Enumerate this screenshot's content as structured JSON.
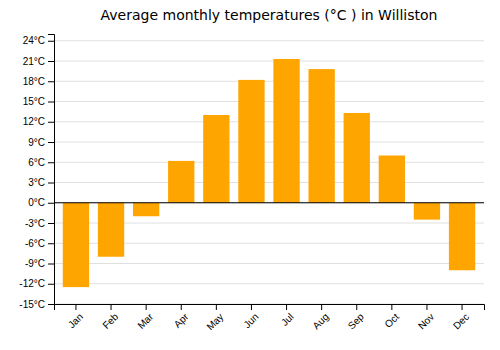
{
  "chart_data": {
    "type": "bar",
    "title": "Average monthly temperatures (°C ) in Williston",
    "categories": [
      "Jan",
      "Feb",
      "Mar",
      "Apr",
      "May",
      "Jun",
      "Jul",
      "Aug",
      "Sep",
      "Oct",
      "Nov",
      "Dec"
    ],
    "values": [
      -12.5,
      -8.0,
      -2.0,
      6.2,
      13.0,
      18.2,
      21.3,
      19.8,
      13.3,
      7.0,
      -2.5,
      -10.0
    ],
    "color": "#FFA500",
    "ylim": [
      -15,
      25
    ],
    "yticks": [
      {
        "value": -15,
        "label": "-15°C"
      },
      {
        "value": -12,
        "label": "-12°C"
      },
      {
        "value": -9,
        "label": "-9°C"
      },
      {
        "value": -6,
        "label": "-6°C"
      },
      {
        "value": -3,
        "label": "-3°C"
      },
      {
        "value": 0,
        "label": "0°C"
      },
      {
        "value": 3,
        "label": "3°C"
      },
      {
        "value": 6,
        "label": "6°C"
      },
      {
        "value": 9,
        "label": "9°C"
      },
      {
        "value": 12,
        "label": "12°C"
      },
      {
        "value": 15,
        "label": "15°C"
      },
      {
        "value": 18,
        "label": "18°C"
      },
      {
        "value": 21,
        "label": "21°C"
      },
      {
        "value": 24,
        "label": "24°C"
      }
    ],
    "grid": true
  }
}
